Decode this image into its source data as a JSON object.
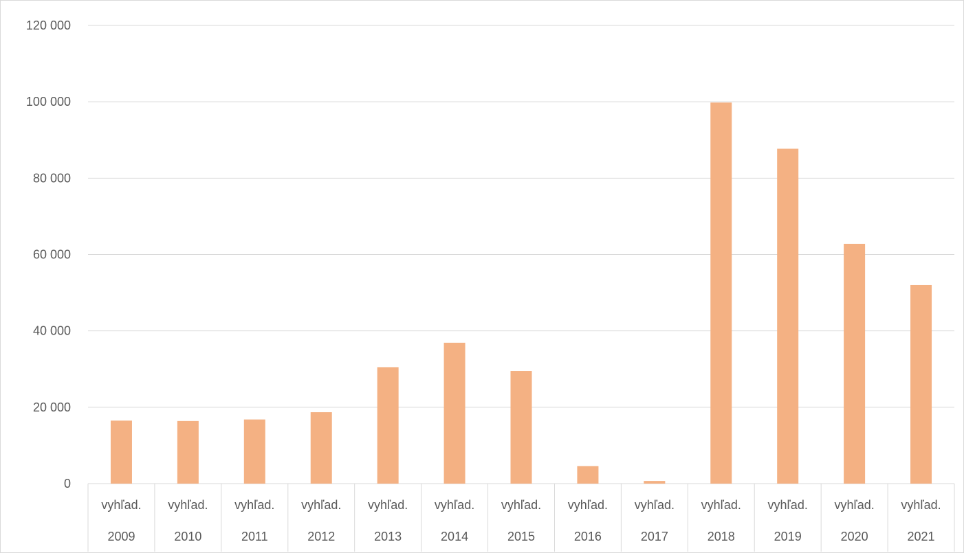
{
  "chart_data": {
    "type": "bar",
    "categories": [
      {
        "sub": "vyhľad.",
        "year": "2009"
      },
      {
        "sub": "vyhľad.",
        "year": "2010"
      },
      {
        "sub": "vyhľad.",
        "year": "2011"
      },
      {
        "sub": "vyhľad.",
        "year": "2012"
      },
      {
        "sub": "vyhľad.",
        "year": "2013"
      },
      {
        "sub": "vyhľad.",
        "year": "2014"
      },
      {
        "sub": "vyhľad.",
        "year": "2015"
      },
      {
        "sub": "vyhľad.",
        "year": "2016"
      },
      {
        "sub": "vyhľad.",
        "year": "2017"
      },
      {
        "sub": "vyhľad.",
        "year": "2018"
      },
      {
        "sub": "vyhľad.",
        "year": "2019"
      },
      {
        "sub": "vyhľad.",
        "year": "2020"
      },
      {
        "sub": "vyhľad.",
        "year": "2021"
      }
    ],
    "values": [
      16500,
      16400,
      16800,
      18700,
      30500,
      36900,
      29500,
      4600,
      700,
      99800,
      87700,
      62800,
      52000
    ],
    "title": "",
    "xlabel": "",
    "ylabel": "",
    "ylim": [
      0,
      120000
    ],
    "yticks": [
      0,
      20000,
      40000,
      60000,
      80000,
      100000,
      120000
    ],
    "ytick_labels": [
      "0",
      "20 000",
      "40 000",
      "60 000",
      "80 000",
      "100 000",
      "120 000"
    ],
    "grid": true,
    "legend": "none",
    "colors": {
      "bar": "#F4B183",
      "grid": "#d9d9d9",
      "axis_text": "#595959",
      "border": "#d9d9d9"
    }
  }
}
